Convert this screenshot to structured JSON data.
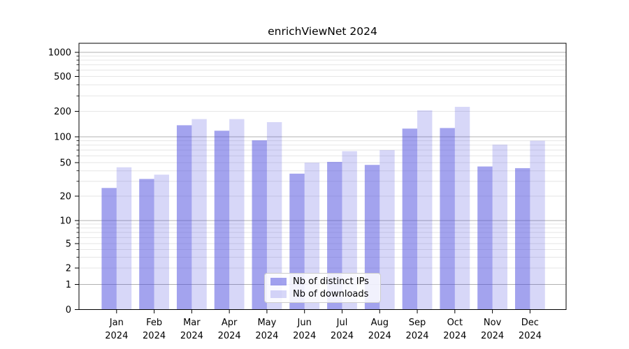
{
  "figure": {
    "title": "enrichViewNet 2024"
  },
  "legend": {
    "items": [
      {
        "label": "Nb of distinct IPs",
        "series_key": "ips"
      },
      {
        "label": "Nb of downloads",
        "series_key": "downloads"
      }
    ]
  },
  "colors": {
    "ips_fill": "rgba(72,72,222,0.50)",
    "downloads_fill": "rgba(72,72,222,0.22)",
    "major_grid": "#b0b0b0",
    "minor_grid": "#e6e6e6",
    "spine": "#000000",
    "text": "#000000"
  },
  "chart_data": {
    "type": "bar",
    "title": "enrichViewNet 2024",
    "categories": [
      "Jan",
      "Feb",
      "Mar",
      "Apr",
      "May",
      "Jun",
      "Jul",
      "Aug",
      "Sep",
      "Oct",
      "Nov",
      "Dec"
    ],
    "year_label": "2024",
    "series": [
      {
        "name": "Nb of distinct IPs",
        "values": [
          25,
          32,
          137,
          118,
          91,
          37,
          51,
          47,
          125,
          127,
          45,
          43
        ]
      },
      {
        "name": "Nb of downloads",
        "values": [
          44,
          36,
          162,
          162,
          149,
          50,
          68,
          70,
          205,
          225,
          81,
          90
        ]
      }
    ],
    "y_scale": "symlog",
    "y_ticks": [
      0,
      1,
      2,
      5,
      10,
      20,
      50,
      100,
      200,
      500,
      1000
    ],
    "y_minor_ticks": [
      3,
      4,
      6,
      7,
      8,
      9,
      30,
      40,
      60,
      70,
      80,
      90,
      300,
      400,
      600,
      700,
      800,
      900
    ],
    "ylim": [
      0,
      1300
    ],
    "grid": true,
    "legend_position": "lower center"
  }
}
